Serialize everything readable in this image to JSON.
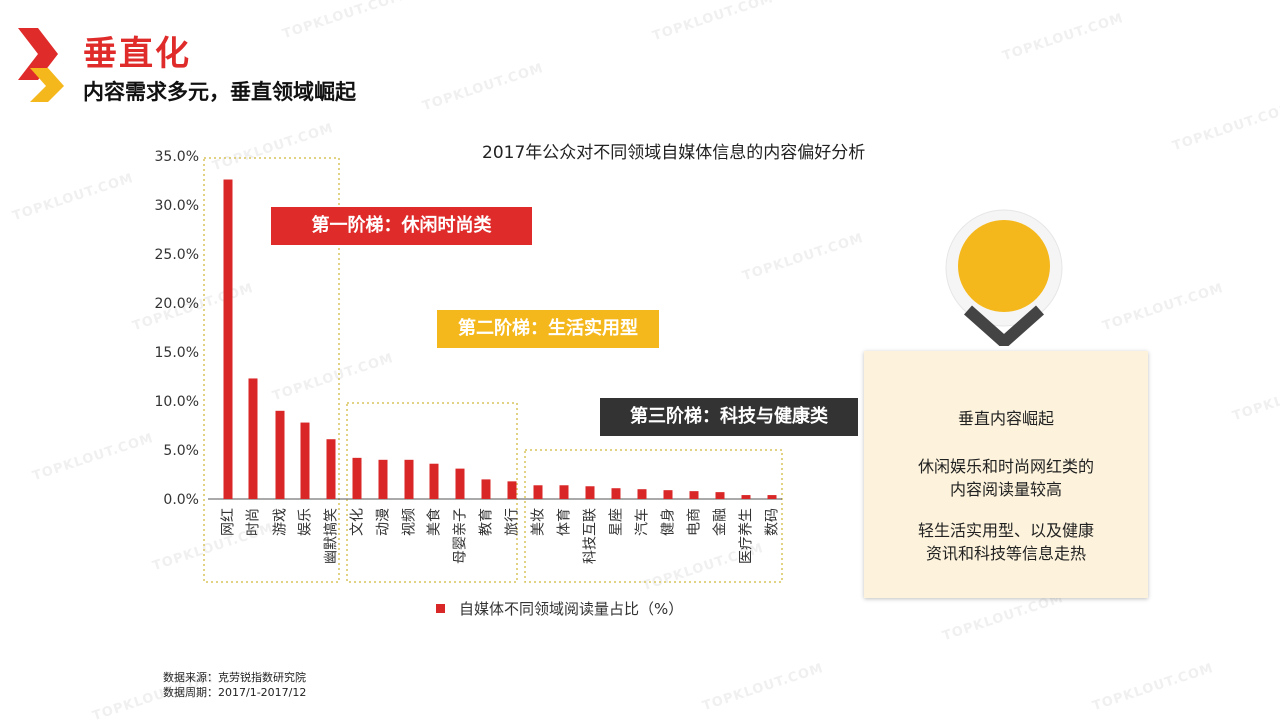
{
  "header": {
    "title": "垂直化",
    "subtitle": "内容需求多元，垂直领域崛起"
  },
  "watermark": "TOPKLOUT.COM",
  "colors": {
    "accent_red": "#e02b2b",
    "accent_yellow": "#f5b81c",
    "dark": "#333333",
    "bar": "#d92626",
    "note_bg": "#fdf3dc"
  },
  "tiers": {
    "tier1": "第一阶梯：休闲时尚类",
    "tier2": "第二阶梯：生活实用型",
    "tier3": "第三阶梯：科技与健康类"
  },
  "note": {
    "p1": "垂直内容崛起",
    "p2a": "休闲娱乐和时尚网红类的",
    "p2b": "内容阅读量较高",
    "p3a": "轻生活实用型、以及健康",
    "p3b": "资讯和科技等信息走热"
  },
  "source": {
    "line1": "数据来源：克劳锐指数研究院",
    "line2": "数据周期：2017/1-2017/12"
  },
  "chart_data": {
    "type": "bar",
    "title": "2017年公众对不同领域自媒体信息的内容偏好分析",
    "categories": [
      "网红",
      "时尚",
      "游戏",
      "娱乐",
      "幽默搞笑",
      "文化",
      "动漫",
      "视频",
      "美食",
      "母婴亲子",
      "教育",
      "旅行",
      "美妆",
      "体育",
      "科技互联",
      "星座",
      "汽车",
      "健身",
      "电商",
      "金融",
      "医疗养生",
      "数码"
    ],
    "series": [
      {
        "name": "自媒体不同领域阅读量占比（%）",
        "values": [
          32.6,
          12.3,
          9.0,
          7.8,
          6.1,
          4.2,
          4.0,
          4.0,
          3.6,
          3.1,
          2.0,
          1.8,
          1.4,
          1.4,
          1.3,
          1.1,
          1.0,
          0.9,
          0.8,
          0.7,
          0.4,
          0.4
        ]
      }
    ],
    "yticks": [
      "0.0%",
      "5.0%",
      "10.0%",
      "15.0%",
      "20.0%",
      "25.0%",
      "30.0%",
      "35.0%"
    ],
    "ylim": [
      0,
      35
    ],
    "legend": "bottom",
    "grid": false
  }
}
